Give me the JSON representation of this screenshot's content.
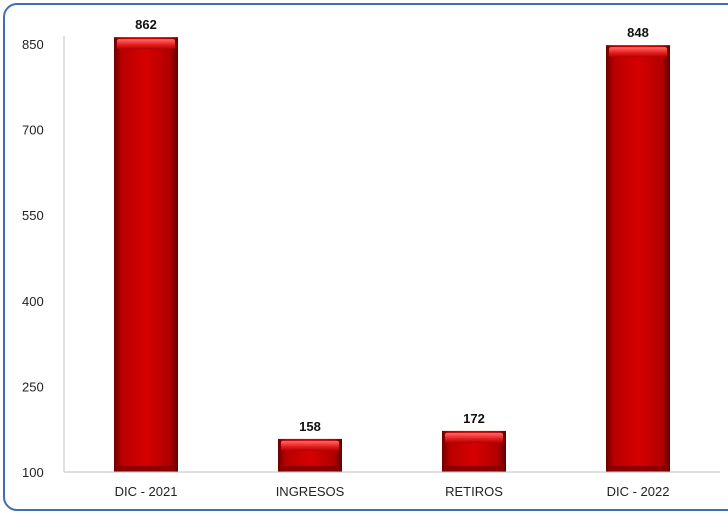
{
  "chart_data": {
    "type": "bar",
    "title": "",
    "xlabel": "",
    "ylabel": "",
    "categories": [
      "DIC - 2021",
      "INGRESOS",
      "RETIROS",
      "DIC - 2022"
    ],
    "values": [
      862,
      158,
      172,
      848
    ],
    "value_labels": [
      "862",
      "158",
      "172",
      "848"
    ],
    "ylim": [
      100,
      850
    ],
    "yticks": [
      100,
      250,
      400,
      550,
      700,
      850
    ],
    "ytick_labels": [
      "100",
      "250",
      "400",
      "550",
      "700",
      "850"
    ],
    "grid": false,
    "legend": "none",
    "colors": {
      "bar": "#c40000",
      "bar_dark": "#7a0000",
      "bar_highlight": "#ff5a5a",
      "axis": "#bfbfbf",
      "frame": "#3f6fb0"
    }
  }
}
